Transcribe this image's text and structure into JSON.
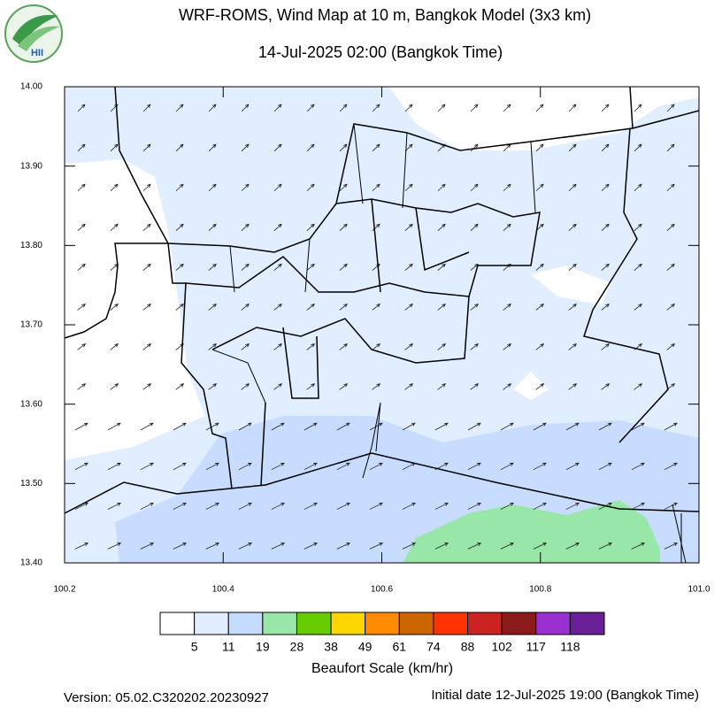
{
  "logo": "HII",
  "header": {
    "title": "WRF-ROMS, Wind Map at 10 m, Bangkok Model (3x3 km)",
    "subtitle": "14-Jul-2025 02:00 (Bangkok Time)"
  },
  "map": {
    "xlim": [
      100.2,
      101.0
    ],
    "ylim": [
      13.4,
      14.0
    ],
    "xticks": [
      {
        "value": 100.2,
        "label": "100.2"
      },
      {
        "value": 100.4,
        "label": "100.4"
      },
      {
        "value": 100.6,
        "label": "100.6"
      },
      {
        "value": 100.8,
        "label": "100.8"
      },
      {
        "value": 101.0,
        "label": "101.0"
      }
    ],
    "yticks": [
      {
        "value": 13.4,
        "label": "13.40"
      },
      {
        "value": 13.5,
        "label": "13.50"
      },
      {
        "value": 13.6,
        "label": "13.60"
      },
      {
        "value": 13.7,
        "label": "13.70"
      },
      {
        "value": 13.8,
        "label": "13.80"
      },
      {
        "value": 13.9,
        "label": "13.90"
      },
      {
        "value": 14.0,
        "label": "14.00"
      }
    ]
  },
  "colorbar": {
    "levels": [
      5,
      11,
      19,
      28,
      38,
      49,
      61,
      74,
      88,
      102,
      117,
      118
    ],
    "colors": [
      "#ffffff",
      "#e0eeff",
      "#c6dcff",
      "#98e6a8",
      "#66cc00",
      "#ffd700",
      "#ff8c00",
      "#cc6600",
      "#ff3300",
      "#cc2222",
      "#8b1a1a",
      "#9b30d0",
      "#6a1f96"
    ],
    "label": "Beaufort Scale (km/hr)"
  },
  "footer": {
    "version": "Version: 05.02.C320202.20230927",
    "initial_date": "Initial date 12-Jul-2025 19:00 (Bangkok Time)"
  }
}
